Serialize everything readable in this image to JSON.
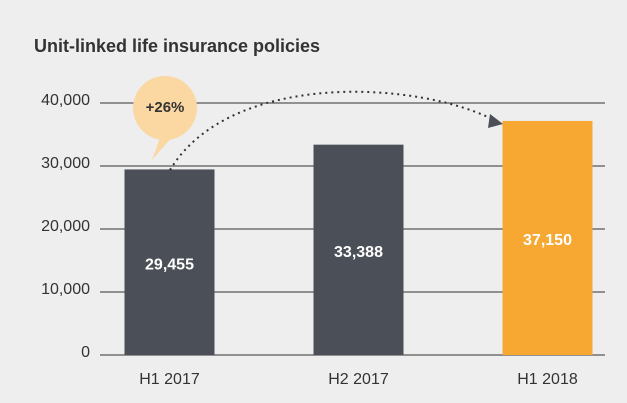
{
  "chart_data": {
    "type": "bar",
    "title": "Unit-linked life insurance policies",
    "categories": [
      "H1 2017",
      "H2 2017",
      "H1 2018"
    ],
    "values": [
      29455,
      33388,
      37150
    ],
    "value_labels": [
      "29,455",
      "33,388",
      "37,150"
    ],
    "colors": [
      "#4b4f57",
      "#4b4f57",
      "#f7a833"
    ],
    "ylim": [
      0,
      40000
    ],
    "yticks": [
      0,
      {
        "value": 10000,
        "label": "10,000"
      },
      {
        "value": 20000,
        "label": "20,000"
      },
      {
        "value": 30000,
        "label": "30,000"
      },
      {
        "value": 40000,
        "label": "40,000"
      }
    ],
    "grid": true,
    "annotation": "+26%"
  }
}
